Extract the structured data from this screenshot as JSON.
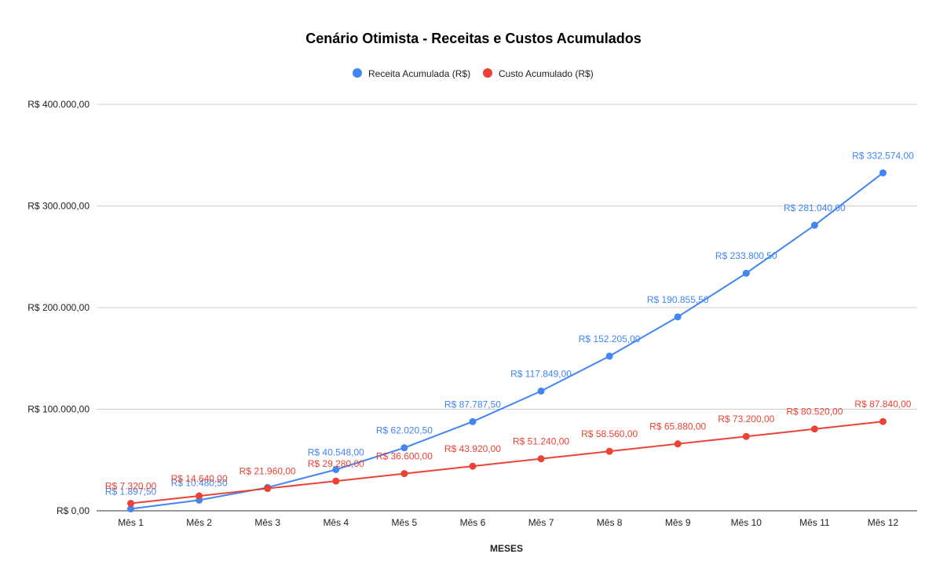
{
  "chart_data": {
    "type": "line",
    "title": "Cenário Otimista - Receitas e Custos Acumulados",
    "xlabel": "MESES",
    "ylabel": "",
    "categories": [
      "Mês 1",
      "Mês 2",
      "Mês 3",
      "Mês 4",
      "Mês 5",
      "Mês 6",
      "Mês 7",
      "Mês 8",
      "Mês 9",
      "Mês 10",
      "Mês 11",
      "Mês 12"
    ],
    "ylim": [
      0,
      400000
    ],
    "yticks": [
      {
        "value": 0,
        "label": "R$ 0,00"
      },
      {
        "value": 100000,
        "label": "R$ 100.000,00"
      },
      {
        "value": 200000,
        "label": "R$ 200.000,00"
      },
      {
        "value": 300000,
        "label": "R$ 300.000,00"
      },
      {
        "value": 400000,
        "label": "R$ 400.000,00"
      }
    ],
    "grid": true,
    "legend_position": "top",
    "series": [
      {
        "name": "Receita Acumulada (R$)",
        "color": "#4285f4",
        "values": [
          1897.5,
          10480.5,
          23000,
          40548,
          62020.5,
          87787.5,
          117849,
          152205,
          190855.5,
          233800.5,
          281040,
          332574
        ],
        "labels": [
          "R$ 1.897,50",
          "R$ 10.480,50",
          "",
          "R$ 40.548,00",
          "R$ 62.020,50",
          "R$ 87.787,50",
          "R$ 117.849,00",
          "R$ 152.205,00",
          "R$ 190.855,50",
          "R$ 233.800,50",
          "R$ 281.040,00",
          "R$ 332.574,00"
        ]
      },
      {
        "name": "Custo Acumulado (R$)",
        "color": "#ea4335",
        "values": [
          7320,
          14640,
          21960,
          29280,
          36600,
          43920,
          51240,
          58560,
          65880,
          73200,
          80520,
          87840
        ],
        "labels": [
          "R$ 7.320,00",
          "R$ 14.640,00",
          "R$ 21.960,00",
          "R$ 29.280,00",
          "R$ 36.600,00",
          "R$ 43.920,00",
          "R$ 51.240,00",
          "R$ 58.560,00",
          "R$ 65.880,00",
          "R$ 73.200,00",
          "R$ 80.520,00",
          "R$ 87.840,00"
        ]
      }
    ]
  }
}
